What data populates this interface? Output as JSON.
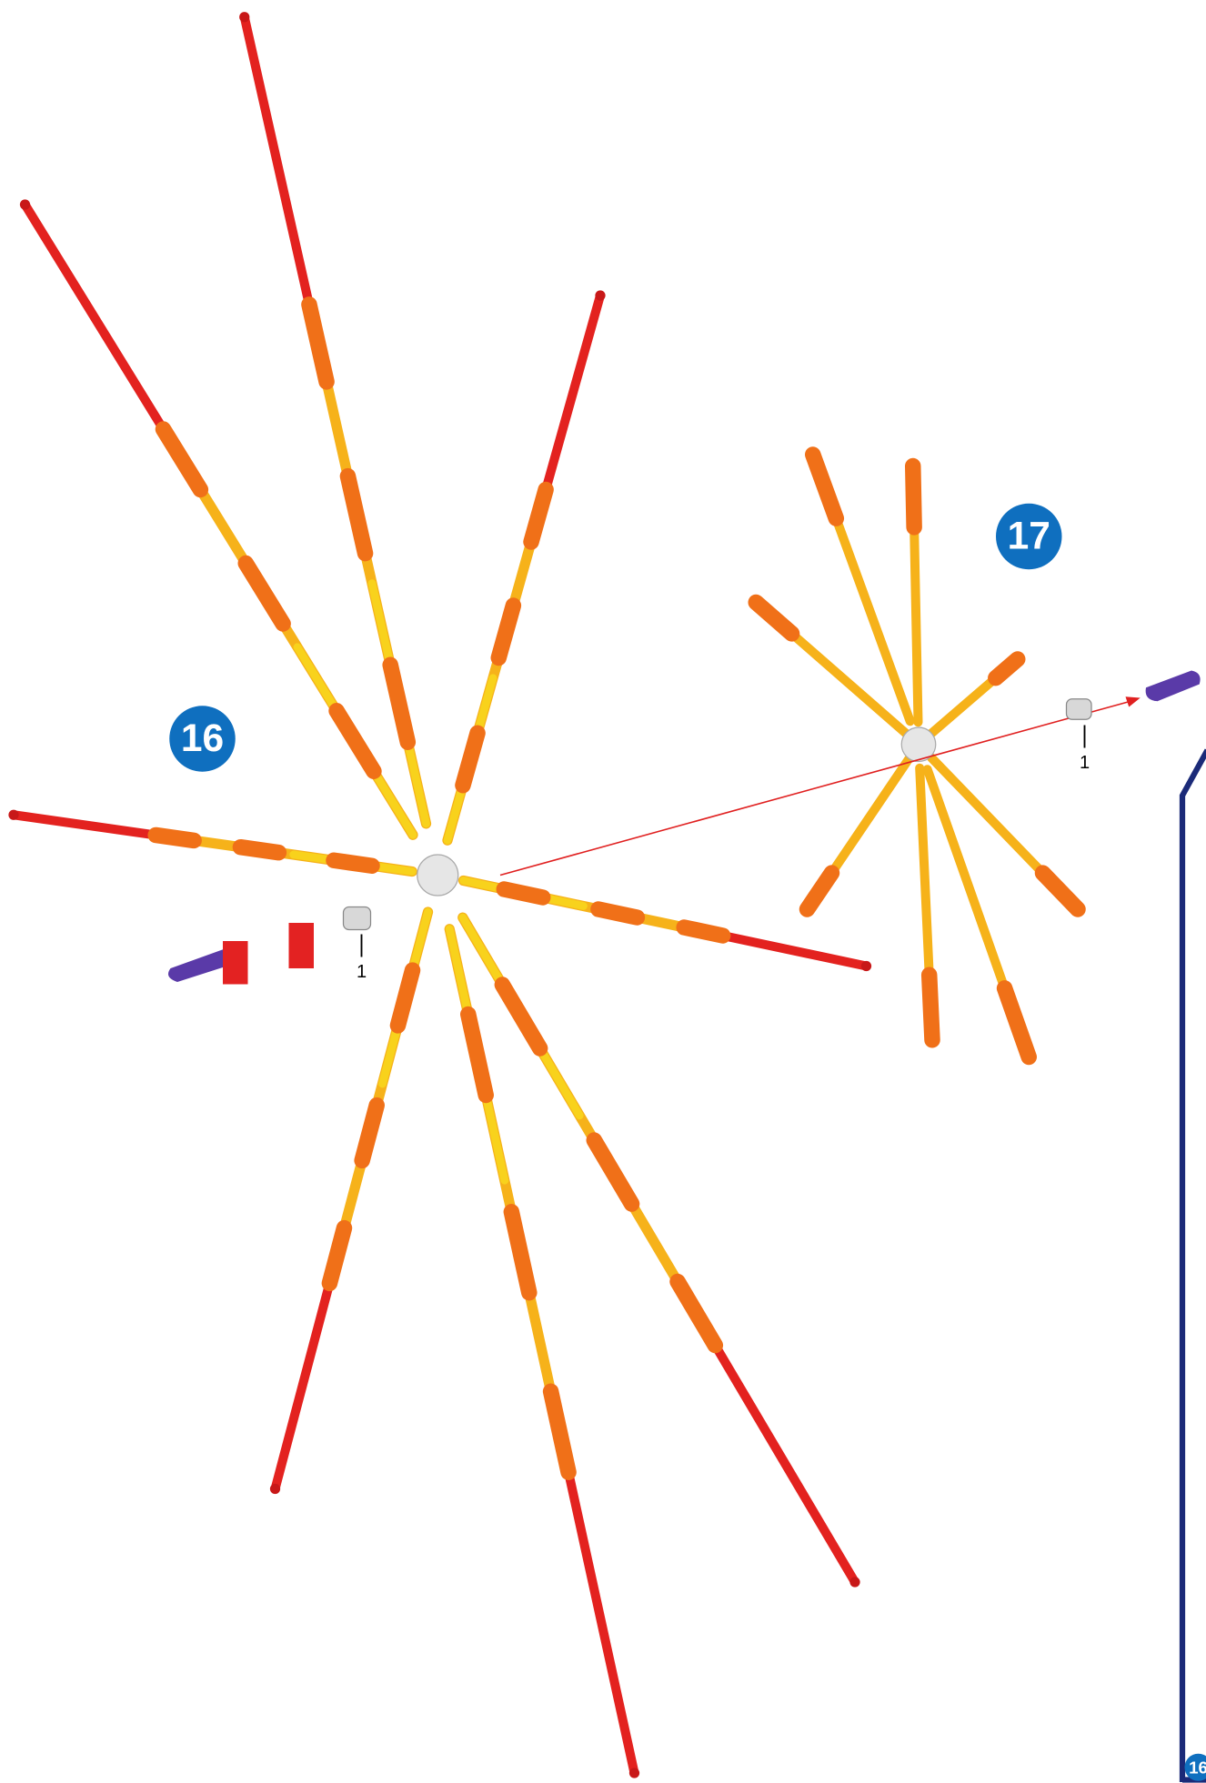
{
  "steps": [
    {
      "number": "16",
      "parts_count": "1"
    },
    {
      "number": "17",
      "parts_count": "1"
    }
  ],
  "next_panel": {
    "number": "16"
  }
}
